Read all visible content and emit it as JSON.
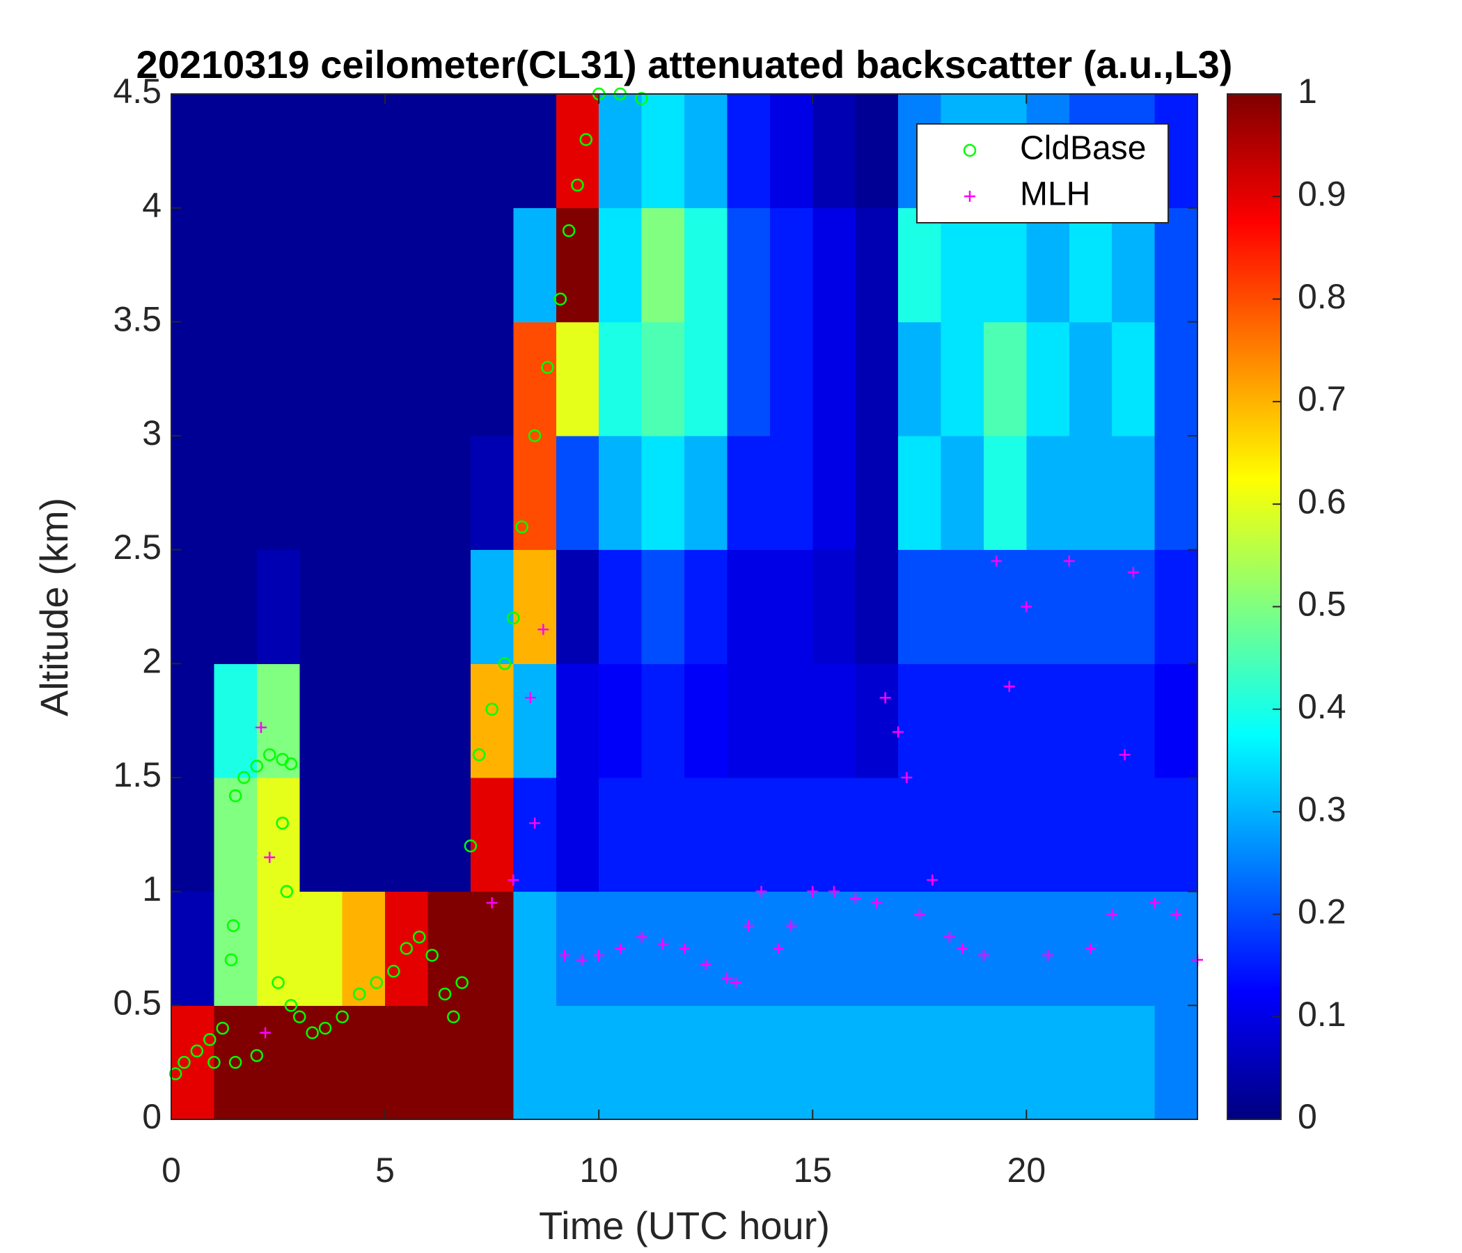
{
  "chart_data": {
    "type": "heatmap",
    "title": "20210319 ceilometer(CL31) attenuated backscatter (a.u.,L3)",
    "xlabel": "Time (UTC hour)",
    "ylabel": "Altitude (km)",
    "xlim": [
      0,
      24
    ],
    "xticks": [
      0,
      5,
      10,
      15,
      20
    ],
    "ylim": [
      0,
      4.5
    ],
    "yticks": [
      0,
      0.5,
      1,
      1.5,
      2,
      2.5,
      3,
      3.5,
      4,
      4.5
    ],
    "colormap": "jet",
    "zlim": [
      0,
      1
    ],
    "zticks": [
      0,
      0.1,
      0.2,
      0.3,
      0.4,
      0.5,
      0.6,
      0.7,
      0.8,
      0.9,
      1
    ],
    "xbins": [
      0,
      1,
      2,
      3,
      4,
      5,
      6,
      7,
      8,
      9,
      10,
      11,
      12,
      13,
      14,
      15,
      16,
      17,
      18,
      19,
      20,
      21,
      22,
      23,
      24
    ],
    "ybins": [
      0,
      0.5,
      1,
      1.5,
      2,
      2.5,
      3,
      3.5,
      4,
      4.5
    ],
    "z": [
      [
        0.9,
        1,
        1,
        1,
        1,
        1,
        1,
        1,
        0.3,
        0.3,
        0.3,
        0.3,
        0.3,
        0.3,
        0.3,
        0.3,
        0.3,
        0.3,
        0.3,
        0.3,
        0.3,
        0.3,
        0.3,
        0.25
      ],
      [
        0.05,
        0.5,
        0.6,
        0.6,
        0.7,
        0.9,
        1,
        1,
        0.3,
        0.25,
        0.25,
        0.25,
        0.25,
        0.25,
        0.25,
        0.25,
        0.25,
        0.25,
        0.25,
        0.25,
        0.25,
        0.25,
        0.25,
        0.25
      ],
      [
        0.02,
        0.5,
        0.6,
        0.02,
        0.02,
        0.02,
        0.02,
        0.9,
        0.15,
        0.1,
        0.15,
        0.15,
        0.15,
        0.15,
        0.15,
        0.15,
        0.15,
        0.15,
        0.15,
        0.15,
        0.15,
        0.15,
        0.15,
        0.15
      ],
      [
        0.02,
        0.4,
        0.5,
        0.02,
        0.02,
        0.02,
        0.02,
        0.7,
        0.3,
        0.1,
        0.12,
        0.15,
        0.12,
        0.1,
        0.1,
        0.1,
        0.08,
        0.15,
        0.15,
        0.15,
        0.15,
        0.15,
        0.15,
        0.12
      ],
      [
        0.02,
        0.02,
        0.05,
        0.02,
        0.02,
        0.02,
        0.02,
        0.3,
        0.7,
        0.05,
        0.15,
        0.2,
        0.15,
        0.1,
        0.1,
        0.08,
        0.05,
        0.2,
        0.2,
        0.2,
        0.2,
        0.2,
        0.2,
        0.15
      ],
      [
        0.02,
        0.02,
        0.02,
        0.02,
        0.02,
        0.02,
        0.02,
        0.05,
        0.8,
        0.2,
        0.3,
        0.35,
        0.3,
        0.15,
        0.15,
        0.1,
        0.05,
        0.35,
        0.3,
        0.4,
        0.3,
        0.3,
        0.3,
        0.2
      ],
      [
        0.02,
        0.02,
        0.02,
        0.02,
        0.02,
        0.02,
        0.02,
        0.02,
        0.8,
        0.6,
        0.4,
        0.45,
        0.4,
        0.2,
        0.15,
        0.1,
        0.05,
        0.3,
        0.35,
        0.45,
        0.35,
        0.3,
        0.35,
        0.2
      ],
      [
        0.02,
        0.02,
        0.02,
        0.02,
        0.02,
        0.02,
        0.02,
        0.02,
        0.3,
        1,
        0.35,
        0.5,
        0.4,
        0.2,
        0.15,
        0.1,
        0.05,
        0.4,
        0.35,
        0.35,
        0.3,
        0.35,
        0.3,
        0.2
      ],
      [
        0.02,
        0.02,
        0.02,
        0.02,
        0.02,
        0.02,
        0.02,
        0.02,
        0.02,
        0.9,
        0.3,
        0.35,
        0.3,
        0.15,
        0.1,
        0.05,
        0.02,
        0.25,
        0.3,
        0.3,
        0.25,
        0.2,
        0.2,
        0.15
      ]
    ],
    "legend": "upper right",
    "series": [
      {
        "name": "CldBase",
        "color": "#00ff00",
        "marker": "o",
        "x": [
          0.1,
          0.3,
          0.6,
          0.9,
          1.2,
          1.4,
          1.45,
          1.5,
          1.7,
          2.0,
          2.3,
          2.6,
          2.8,
          2.6,
          2.7,
          2.5,
          2.8,
          3.0,
          3.3,
          3.6,
          4.0,
          4.4,
          4.8,
          5.2,
          5.5,
          5.8,
          6.1,
          6.4,
          6.6,
          6.8,
          7.0,
          7.2,
          7.5,
          7.8,
          8.0,
          8.2,
          8.5,
          8.8,
          9.1,
          9.3,
          9.5,
          9.7,
          10.0,
          10.5,
          11.0,
          1.0,
          1.5,
          2.0
        ],
        "values": [
          0.2,
          0.25,
          0.3,
          0.35,
          0.4,
          0.7,
          0.85,
          1.42,
          1.5,
          1.55,
          1.6,
          1.58,
          1.56,
          1.3,
          1.0,
          0.6,
          0.5,
          0.45,
          0.38,
          0.4,
          0.45,
          0.55,
          0.6,
          0.65,
          0.75,
          0.8,
          0.72,
          0.55,
          0.45,
          0.6,
          1.2,
          1.6,
          1.8,
          2.0,
          2.2,
          2.6,
          3.0,
          3.3,
          3.6,
          3.9,
          4.1,
          4.3,
          4.5,
          4.5,
          4.48,
          0.25,
          0.25,
          0.28
        ]
      },
      {
        "name": "MLH",
        "color": "#ff00ff",
        "marker": "+",
        "x": [
          2.1,
          2.2,
          2.3,
          7.5,
          8.0,
          8.4,
          8.7,
          8.5,
          9.2,
          9.6,
          10.0,
          10.5,
          11.0,
          11.5,
          12.0,
          12.5,
          13.0,
          13.2,
          13.5,
          13.8,
          14.2,
          14.5,
          15.0,
          15.5,
          16.0,
          16.5,
          16.7,
          17.0,
          17.2,
          17.5,
          17.8,
          18.2,
          18.5,
          19.0,
          19.3,
          19.6,
          20.0,
          20.5,
          21.0,
          21.5,
          22.0,
          22.3,
          22.5,
          23.0,
          23.5,
          24.0
        ],
        "values": [
          1.72,
          0.38,
          1.15,
          0.95,
          1.05,
          1.85,
          2.15,
          1.3,
          0.72,
          0.7,
          0.72,
          0.75,
          0.8,
          0.77,
          0.75,
          0.68,
          0.62,
          0.6,
          0.85,
          1.0,
          0.75,
          0.85,
          1.0,
          1.0,
          0.97,
          0.95,
          1.85,
          1.7,
          1.5,
          0.9,
          1.05,
          0.8,
          0.75,
          0.72,
          2.45,
          1.9,
          2.25,
          0.72,
          2.45,
          0.75,
          0.9,
          1.6,
          2.4,
          0.95,
          0.9,
          0.7
        ]
      }
    ]
  }
}
